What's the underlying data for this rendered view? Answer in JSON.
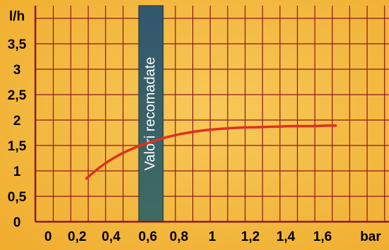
{
  "chart_data": {
    "type": "line",
    "y_unit_label": "l/h",
    "x_unit_label": "bar",
    "x_tick_labels": [
      "0",
      "0,2",
      "0,4",
      "0,6",
      "0,8",
      "1",
      "1,2",
      "1,4",
      "1,6"
    ],
    "y_tick_labels": [
      "0",
      "0,5",
      "1",
      "1,5",
      "2",
      "2,5",
      "3",
      "3,5"
    ],
    "xlim": [
      0,
      1.85
    ],
    "ylim": [
      0,
      4.2
    ],
    "grid": true,
    "recommended_range": {
      "label": "Valori recomadate",
      "x_from": 0.52,
      "x_to": 0.66
    },
    "series": [
      {
        "color": "#e0301e",
        "x": [
          0.22,
          0.3,
          0.4,
          0.5,
          0.6,
          0.7,
          0.8,
          0.9,
          1.0,
          1.1,
          1.2,
          1.3,
          1.4,
          1.5,
          1.6,
          1.65
        ],
        "y": [
          0.85,
          1.08,
          1.3,
          1.46,
          1.58,
          1.68,
          1.75,
          1.8,
          1.83,
          1.85,
          1.86,
          1.87,
          1.88,
          1.88,
          1.89,
          1.89
        ]
      }
    ],
    "colors": {
      "background": "#f4b942",
      "grid": "#8b1a1a",
      "band_top": "#32576e",
      "band_bottom": "#3f6b62"
    }
  }
}
